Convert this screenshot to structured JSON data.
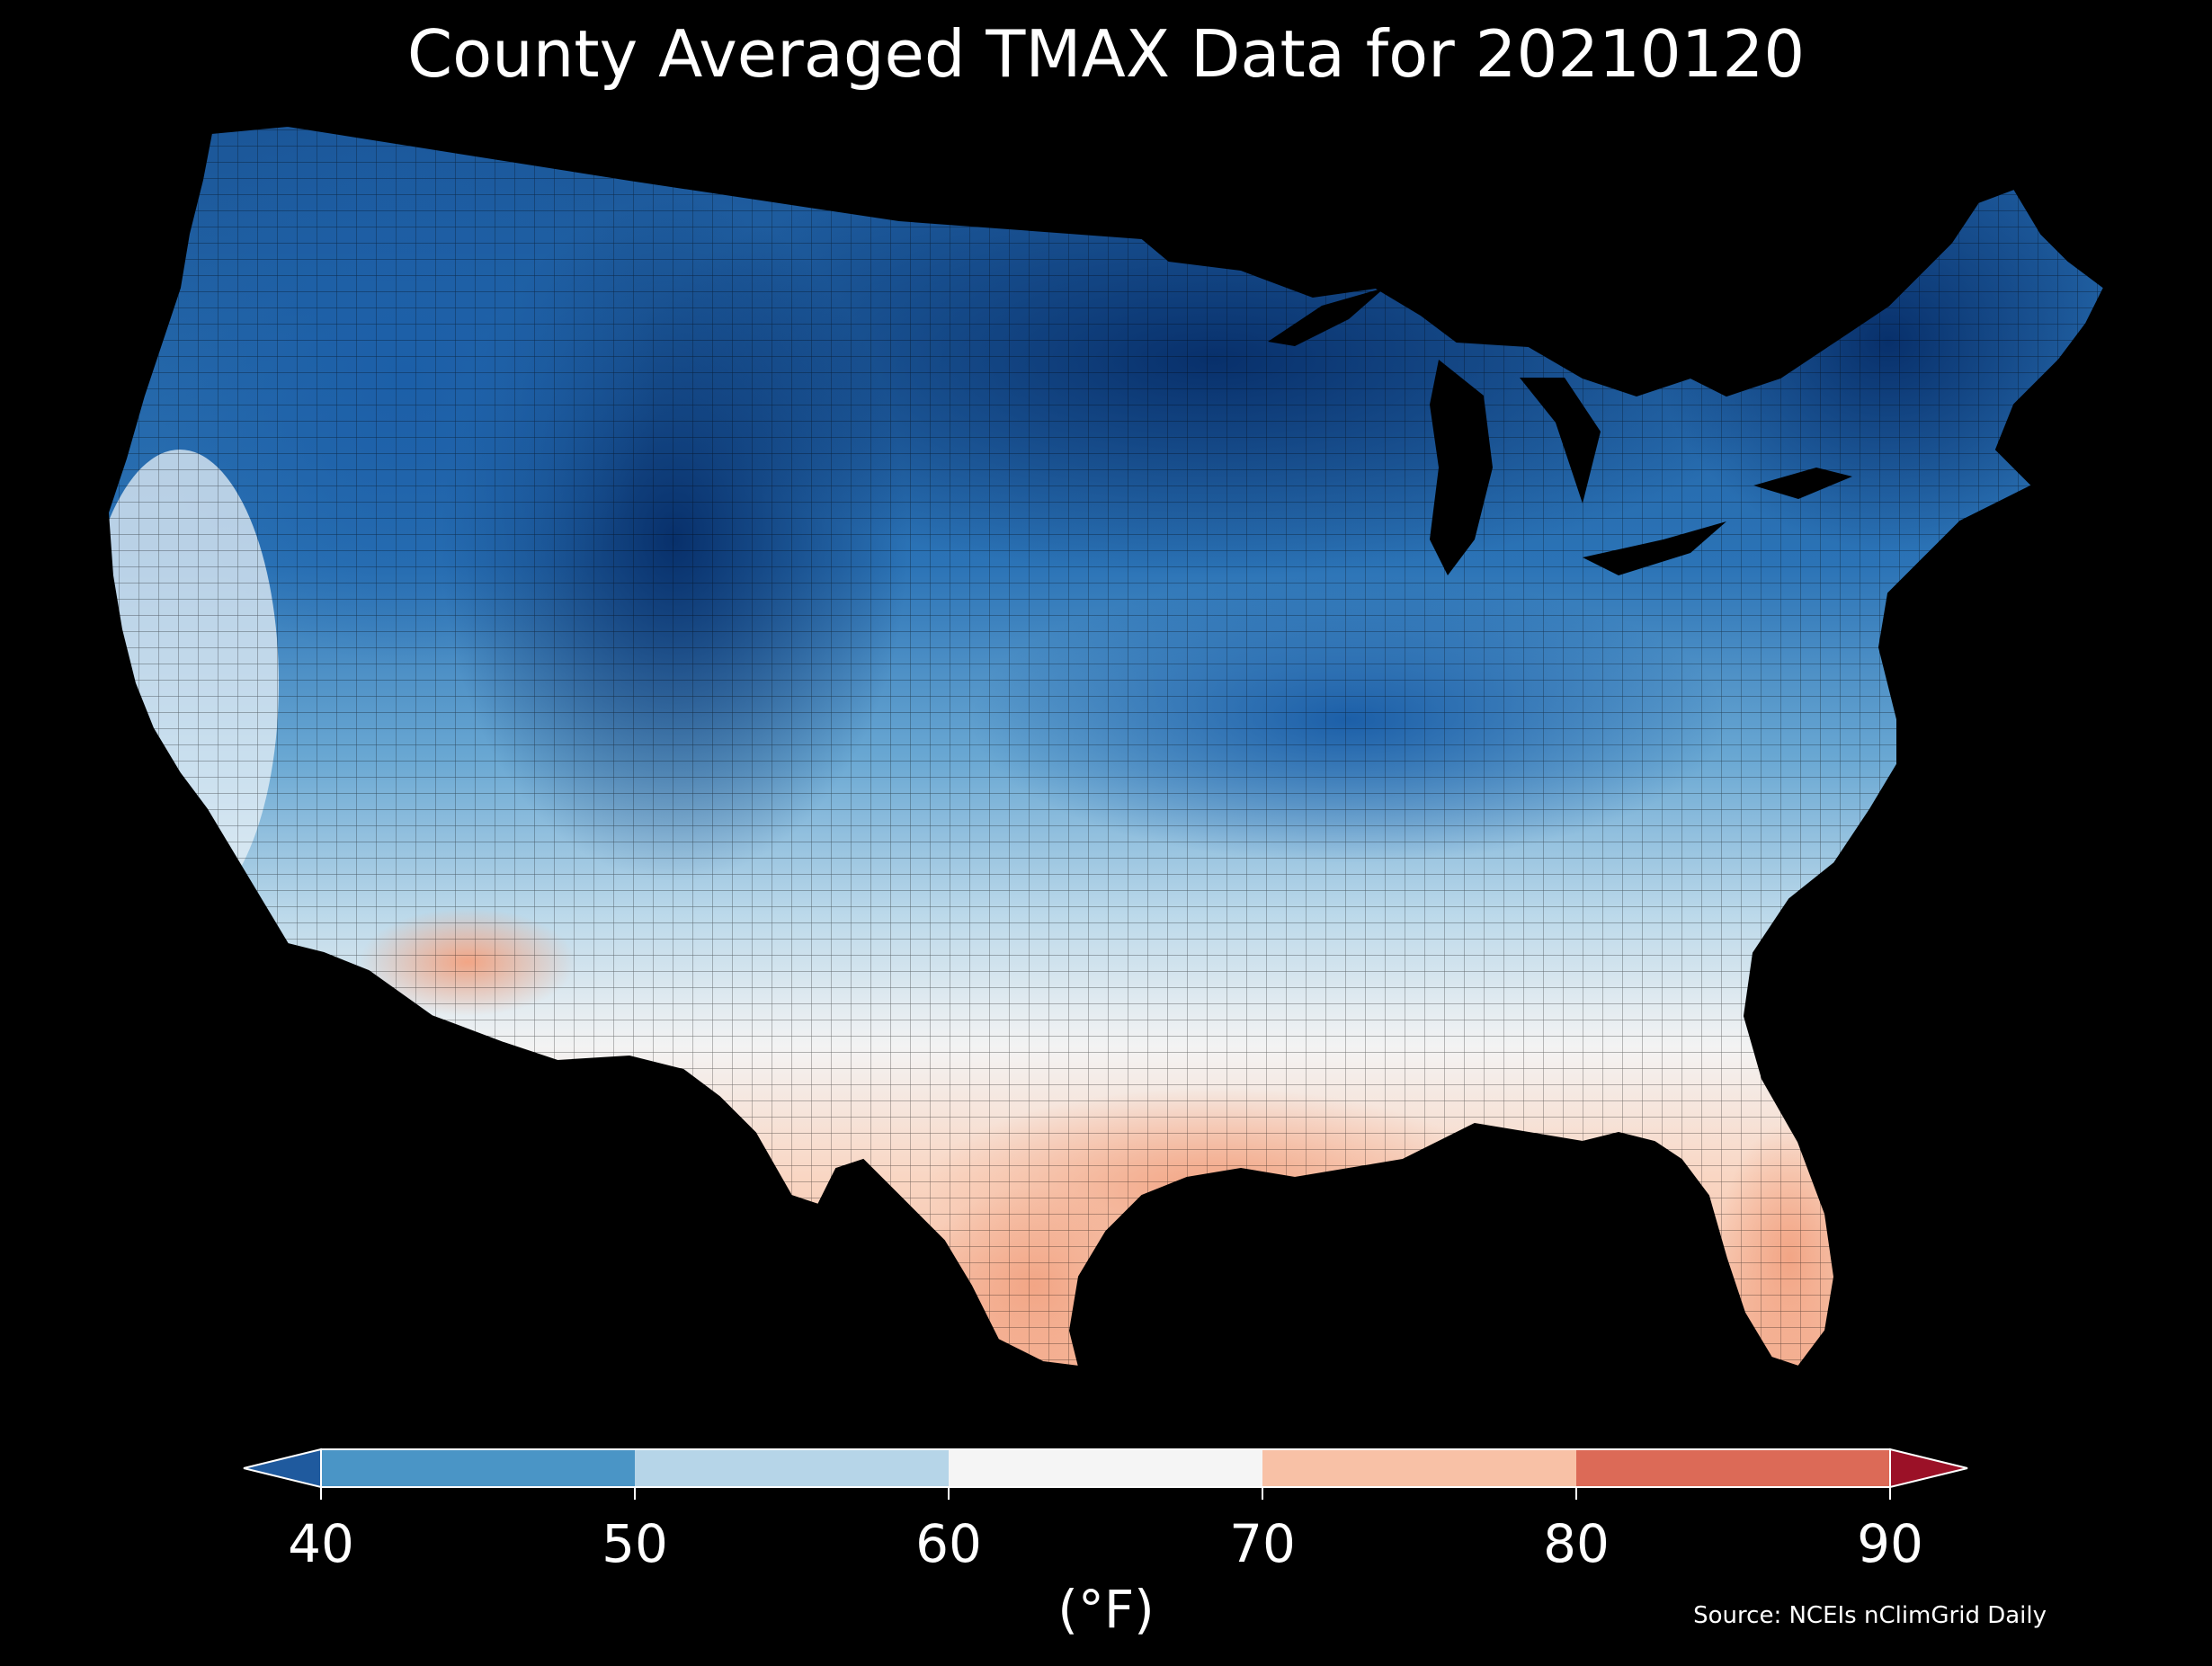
{
  "title": "County Averaged TMAX Data for 20210120",
  "colorbar": {
    "ticks": [
      "40",
      "50",
      "60",
      "70",
      "80",
      "90"
    ],
    "unit": "(°F)",
    "bins": [
      {
        "from": 40,
        "to": 50,
        "color": "#4a95c6"
      },
      {
        "from": 50,
        "to": 60,
        "color": "#b6d5e8"
      },
      {
        "from": 60,
        "to": 70,
        "color": "#f5f5f5"
      },
      {
        "from": 70,
        "to": 80,
        "color": "#f8c1a6"
      },
      {
        "from": 80,
        "to": 90,
        "color": "#dc6a57"
      }
    ],
    "under_color": "#1f5a9e",
    "over_color": "#9b1127"
  },
  "source": "Source: NCEIs nClimGrid Daily",
  "map": {
    "background": "#000000",
    "region": "Contiguous United States counties",
    "shade_scale_fahrenheit": [
      "<40",
      "40-50",
      "50-60",
      "60-70",
      "70-80"
    ]
  }
}
